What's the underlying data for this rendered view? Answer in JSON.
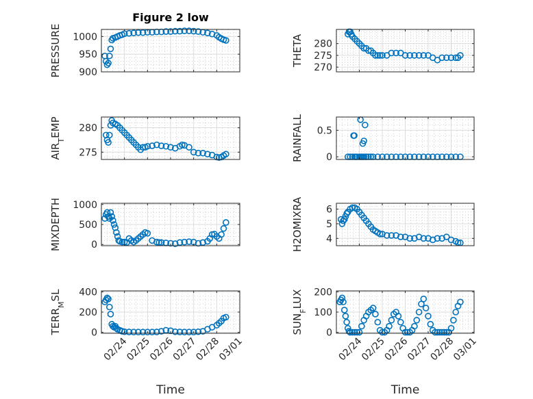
{
  "figure": {
    "title": "Figure 2 low",
    "marker_color": "#0072BD"
  },
  "chart_data": [
    {
      "type": "scatter",
      "id": "pressure",
      "title": "Figure 2 low",
      "ylabel": "PRESSURE",
      "ylabel_sub": "",
      "ylabel_after": "",
      "xlim": [
        0,
        6
      ],
      "ylim": [
        900,
        1020
      ],
      "yticks": [
        900,
        950,
        1000
      ],
      "ytick_labels": [
        "900",
        "950",
        "1000"
      ],
      "xticks": [
        1,
        2,
        3,
        4,
        5,
        6
      ],
      "xtick_labels": [],
      "xlabel": "",
      "x": [
        0.15,
        0.2,
        0.25,
        0.3,
        0.35,
        0.4,
        0.45,
        0.5,
        0.6,
        0.7,
        0.8,
        0.9,
        1.0,
        1.2,
        1.4,
        1.6,
        1.8,
        2.0,
        2.2,
        2.4,
        2.6,
        2.8,
        3.0,
        3.2,
        3.4,
        3.6,
        3.8,
        4.0,
        4.2,
        4.4,
        4.6,
        4.8,
        5.0,
        5.1,
        5.2,
        5.3,
        5.4
      ],
      "y": [
        945,
        930,
        920,
        925,
        945,
        965,
        990,
        995,
        997,
        1000,
        1003,
        1005,
        1008,
        1009,
        1010,
        1011,
        1011,
        1012,
        1012,
        1013,
        1013,
        1014,
        1014,
        1015,
        1015,
        1016,
        1016,
        1015,
        1014,
        1012,
        1010,
        1007,
        1003,
        998,
        994,
        991,
        989
      ]
    },
    {
      "type": "scatter",
      "id": "theta",
      "title": "",
      "ylabel": "THETA",
      "ylabel_sub": "",
      "ylabel_after": "",
      "xlim": [
        0,
        6
      ],
      "ylim": [
        268,
        286
      ],
      "yticks": [
        270,
        275,
        280
      ],
      "ytick_labels": [
        "270",
        "275",
        "280"
      ],
      "xticks": [
        1,
        2,
        3,
        4,
        5,
        6
      ],
      "xtick_labels": [],
      "xlabel": "",
      "x": [
        0.5,
        0.55,
        0.6,
        0.65,
        0.7,
        0.8,
        0.9,
        1.0,
        1.1,
        1.2,
        1.3,
        1.4,
        1.5,
        1.6,
        1.7,
        1.8,
        1.9,
        2.0,
        2.2,
        2.4,
        2.6,
        2.8,
        3.0,
        3.2,
        3.4,
        3.6,
        3.8,
        4.0,
        4.2,
        4.4,
        4.6,
        4.8,
        5.0,
        5.2,
        5.3,
        5.4
      ],
      "y": [
        284,
        285,
        285,
        284,
        283,
        282,
        281,
        280,
        279,
        278,
        278,
        277,
        277,
        276,
        275,
        275,
        275,
        275,
        275,
        276,
        276,
        276,
        275,
        275,
        275,
        275,
        275,
        275,
        274,
        273,
        274,
        274,
        274,
        274,
        274,
        275
      ]
    },
    {
      "type": "scatter",
      "id": "air_temp",
      "title": "",
      "ylabel": "AIR",
      "ylabel_sub": "T",
      "ylabel_after": "EMP",
      "xlim": [
        0,
        6
      ],
      "ylim": [
        273.5,
        282.2
      ],
      "yticks": [
        275,
        280
      ],
      "ytick_labels": [
        "275",
        "280"
      ],
      "xticks": [
        1,
        2,
        3,
        4,
        5,
        6
      ],
      "xtick_labels": [],
      "xlabel": "",
      "x": [
        0.2,
        0.25,
        0.3,
        0.35,
        0.4,
        0.45,
        0.5,
        0.6,
        0.7,
        0.8,
        0.9,
        1.0,
        1.1,
        1.2,
        1.3,
        1.4,
        1.5,
        1.6,
        1.7,
        1.8,
        1.9,
        2.0,
        2.2,
        2.4,
        2.6,
        2.8,
        3.0,
        3.2,
        3.4,
        3.5,
        3.6,
        3.8,
        4.0,
        4.2,
        4.4,
        4.6,
        4.8,
        5.0,
        5.1,
        5.2,
        5.3,
        5.4
      ],
      "y": [
        278.5,
        277.5,
        277,
        278.5,
        280.5,
        281.5,
        281,
        280.8,
        280.5,
        280,
        279.5,
        279,
        278.5,
        278,
        277.5,
        277,
        276.5,
        276,
        275.5,
        276,
        276,
        276.2,
        276.3,
        276.5,
        276.3,
        276.2,
        276,
        275.8,
        276.2,
        276.5,
        276.4,
        276,
        275,
        274.8,
        274.8,
        274.6,
        274.4,
        274,
        273.9,
        274,
        274.3,
        274.6
      ]
    },
    {
      "type": "scatter",
      "id": "rainfall",
      "title": "",
      "ylabel": "RAINFALL",
      "ylabel_sub": "",
      "ylabel_after": "",
      "xlim": [
        0,
        6
      ],
      "ylim": [
        -0.05,
        0.75
      ],
      "yticks": [
        0,
        0.5
      ],
      "ytick_labels": [
        "0",
        "0.5"
      ],
      "xticks": [
        1,
        2,
        3,
        4,
        5,
        6
      ],
      "xtick_labels": [],
      "xlabel": "",
      "x": [
        0.5,
        0.6,
        0.7,
        0.8,
        0.85,
        0.9,
        1.0,
        1.05,
        1.1,
        1.15,
        1.2,
        1.3,
        1.4,
        1.5,
        1.6,
        1.8,
        2.0,
        2.2,
        2.4,
        2.6,
        2.8,
        3.0,
        3.2,
        3.4,
        3.6,
        3.8,
        4.0,
        4.2,
        4.4,
        4.6,
        4.8,
        5.0,
        5.2,
        5.4,
        0.75,
        0.78,
        1.05,
        1.15,
        1.2,
        1.25,
        1.3
      ],
      "y": [
        0,
        0,
        0,
        0,
        0,
        0,
        0,
        0,
        0,
        0,
        0,
        0,
        0,
        0,
        0,
        0,
        0,
        0,
        0,
        0,
        0,
        0,
        0,
        0,
        0,
        0,
        0,
        0,
        0,
        0,
        0,
        0,
        0,
        0,
        0.4,
        0.4,
        0.7,
        0.25,
        0.3,
        0.6,
        0
      ]
    },
    {
      "type": "scatter",
      "id": "mixdepth",
      "title": "",
      "ylabel": "MIXDEPTH",
      "ylabel_sub": "",
      "ylabel_after": "",
      "xlim": [
        0,
        6
      ],
      "ylim": [
        -30,
        1030
      ],
      "yticks": [
        0,
        500,
        1000
      ],
      "ytick_labels": [
        "0",
        "500",
        "1000"
      ],
      "xticks": [
        1,
        2,
        3,
        4,
        5,
        6
      ],
      "xtick_labels": [],
      "xlabel": "",
      "x": [
        0.15,
        0.2,
        0.25,
        0.3,
        0.35,
        0.4,
        0.45,
        0.5,
        0.55,
        0.6,
        0.65,
        0.7,
        0.75,
        0.8,
        0.9,
        1.0,
        1.1,
        1.2,
        1.3,
        1.4,
        1.5,
        1.6,
        1.7,
        1.8,
        1.9,
        2.0,
        2.2,
        2.4,
        2.5,
        2.6,
        2.8,
        3.0,
        3.2,
        3.4,
        3.6,
        3.8,
        4.0,
        4.2,
        4.4,
        4.6,
        4.7,
        4.8,
        4.9,
        5.0,
        5.1,
        5.2,
        5.3,
        5.4
      ],
      "y": [
        650,
        750,
        800,
        700,
        650,
        800,
        700,
        600,
        500,
        420,
        300,
        200,
        100,
        80,
        60,
        60,
        50,
        150,
        100,
        60,
        100,
        150,
        200,
        250,
        300,
        280,
        100,
        60,
        50,
        50,
        40,
        30,
        20,
        50,
        60,
        70,
        60,
        30,
        50,
        80,
        150,
        250,
        260,
        200,
        150,
        250,
        400,
        550
      ]
    },
    {
      "type": "scatter",
      "id": "h2omixra",
      "title": "",
      "ylabel": "H2OMIXRA",
      "ylabel_sub": "",
      "ylabel_after": "",
      "xlim": [
        0,
        6
      ],
      "ylim": [
        3.5,
        6.4
      ],
      "yticks": [
        4,
        5,
        6
      ],
      "ytick_labels": [
        "4",
        "5",
        "6"
      ],
      "xticks": [
        1,
        2,
        3,
        4,
        5,
        6
      ],
      "xtick_labels": [],
      "xlabel": "",
      "x": [
        0.2,
        0.25,
        0.3,
        0.35,
        0.4,
        0.45,
        0.5,
        0.6,
        0.7,
        0.8,
        0.9,
        1.0,
        1.1,
        1.2,
        1.3,
        1.4,
        1.5,
        1.6,
        1.7,
        1.8,
        1.9,
        2.0,
        2.2,
        2.4,
        2.6,
        2.8,
        3.0,
        3.2,
        3.4,
        3.6,
        3.8,
        4.0,
        4.2,
        4.4,
        4.6,
        4.8,
        5.0,
        5.2,
        5.3,
        5.4
      ],
      "y": [
        5.3,
        5.0,
        5.2,
        5.3,
        5.5,
        5.7,
        5.8,
        6.0,
        6.1,
        6.1,
        6.0,
        5.8,
        5.6,
        5.4,
        5.2,
        5.0,
        4.8,
        4.6,
        4.5,
        4.4,
        4.3,
        4.3,
        4.2,
        4.2,
        4.2,
        4.1,
        4.1,
        4.0,
        4.0,
        4.1,
        4.0,
        4.0,
        3.9,
        4.0,
        4.0,
        4.1,
        3.9,
        3.8,
        3.7,
        3.7
      ]
    },
    {
      "type": "scatter",
      "id": "terr_msl",
      "title": "",
      "ylabel": "TERR",
      "ylabel_sub": "M",
      "ylabel_after": "SL",
      "xlim": [
        0,
        6
      ],
      "ylim": [
        -10,
        410
      ],
      "yticks": [
        0,
        200,
        400
      ],
      "ytick_labels": [
        "0",
        "200",
        "400"
      ],
      "xticks": [
        1,
        2,
        3,
        4,
        5,
        6
      ],
      "xtick_labels": [
        "02/24",
        "02/25",
        "02/26",
        "02/27",
        "02/28",
        "03/01"
      ],
      "xlabel": "Time",
      "x": [
        0.15,
        0.2,
        0.25,
        0.3,
        0.35,
        0.4,
        0.45,
        0.5,
        0.55,
        0.6,
        0.65,
        0.7,
        0.8,
        0.9,
        1.0,
        1.2,
        1.4,
        1.6,
        1.8,
        2.0,
        2.2,
        2.4,
        2.6,
        2.8,
        3.0,
        3.2,
        3.4,
        3.6,
        3.8,
        4.0,
        4.2,
        4.4,
        4.6,
        4.8,
        5.0,
        5.1,
        5.2,
        5.3,
        5.4
      ],
      "y": [
        300,
        320,
        340,
        330,
        250,
        180,
        80,
        60,
        50,
        60,
        40,
        30,
        20,
        10,
        5,
        3,
        2,
        2,
        2,
        2,
        2,
        3,
        10,
        20,
        15,
        5,
        3,
        2,
        2,
        2,
        5,
        10,
        30,
        50,
        70,
        90,
        110,
        140,
        150
      ]
    },
    {
      "type": "scatter",
      "id": "sun_flux",
      "title": "",
      "ylabel": "SUN",
      "ylabel_sub": "F",
      "ylabel_after": "LUX",
      "xlim": [
        0,
        6
      ],
      "ylim": [
        -5,
        205
      ],
      "yticks": [
        0,
        100,
        200
      ],
      "ytick_labels": [
        "0",
        "100",
        "200"
      ],
      "xticks": [
        1,
        2,
        3,
        4,
        5,
        6
      ],
      "xtick_labels": [
        "02/24",
        "02/25",
        "02/26",
        "02/27",
        "02/28",
        "03/01"
      ],
      "xlabel": "Time",
      "x": [
        0.15,
        0.2,
        0.25,
        0.3,
        0.35,
        0.4,
        0.45,
        0.5,
        0.55,
        0.6,
        0.7,
        0.8,
        0.9,
        1.0,
        1.1,
        1.2,
        1.3,
        1.4,
        1.5,
        1.6,
        1.7,
        1.8,
        1.9,
        2.0,
        2.1,
        2.2,
        2.3,
        2.4,
        2.5,
        2.6,
        2.7,
        2.8,
        2.9,
        3.0,
        3.1,
        3.2,
        3.3,
        3.4,
        3.5,
        3.6,
        3.7,
        3.8,
        3.9,
        4.0,
        4.1,
        4.2,
        4.3,
        4.4,
        4.5,
        4.6,
        4.7,
        4.8,
        4.9,
        5.0,
        5.1,
        5.2,
        5.3,
        5.4
      ],
      "y": [
        150,
        160,
        170,
        150,
        110,
        80,
        50,
        20,
        5,
        0,
        0,
        0,
        0,
        0,
        30,
        60,
        80,
        100,
        110,
        120,
        90,
        50,
        10,
        0,
        0,
        10,
        30,
        60,
        90,
        100,
        80,
        50,
        20,
        0,
        0,
        0,
        10,
        30,
        60,
        100,
        140,
        165,
        120,
        80,
        40,
        10,
        0,
        0,
        0,
        0,
        0,
        0,
        0,
        20,
        60,
        100,
        130,
        150
      ]
    }
  ]
}
